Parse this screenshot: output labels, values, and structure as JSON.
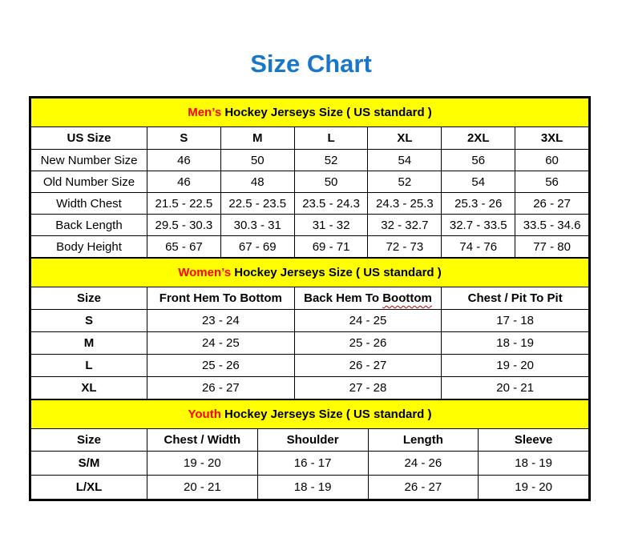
{
  "theme": {
    "title_blue": "#1976C8",
    "banner_yellow": "#FFFF00",
    "accent_red": "#FF0000",
    "squiggle_red": "#C00000",
    "border_black": "#000000",
    "text_black": "#000000"
  },
  "page": {
    "title": "Size Chart"
  },
  "mens": {
    "title_accent": "Men’s",
    "title_rest": " Hockey Jerseys Size ( US standard )",
    "header": [
      "US Size",
      "S",
      "M",
      "L",
      "XL",
      "2XL",
      "3XL"
    ],
    "rows": [
      [
        "New Number Size",
        "46",
        "50",
        "52",
        "54",
        "56",
        "60"
      ],
      [
        "Old Number Size",
        "46",
        "48",
        "50",
        "52",
        "54",
        "56"
      ],
      [
        "Width Chest",
        "21.5 - 22.5",
        "22.5 - 23.5",
        "23.5 - 24.3",
        "24.3 - 25.3",
        "25.3 - 26",
        "26 - 27"
      ],
      [
        "Back Length",
        "29.5 - 30.3",
        "30.3 - 31",
        "31 - 32",
        "32 - 32.7",
        "32.7 - 33.5",
        "33.5 - 34.6"
      ],
      [
        "Body Height",
        "65 - 67",
        "67 - 69",
        "69 - 71",
        "72 - 73",
        "74 - 76",
        "77 - 80"
      ]
    ]
  },
  "womens": {
    "title_accent": "Women’s",
    "title_rest": " Hockey Jerseys Size ( US standard )",
    "header": {
      "size": "Size",
      "front_hem": "Front Hem To Bottom",
      "back_hem_prefix": "Back Hem To ",
      "back_hem_word": "Boottom",
      "chest": "Chest / Pit To Pit"
    },
    "rows": [
      [
        "S",
        "23 - 24",
        "24 - 25",
        "17 - 18"
      ],
      [
        "M",
        "24 - 25",
        "25 - 26",
        "18 - 19"
      ],
      [
        "L",
        "25 - 26",
        "26 - 27",
        "19 - 20"
      ],
      [
        "XL",
        "26 - 27",
        "27 - 28",
        "20 - 21"
      ]
    ]
  },
  "youth": {
    "title_accent": "Youth",
    "title_rest": " Hockey Jerseys Size ( US standard )",
    "header": [
      "Size",
      "Chest / Width",
      "Shoulder",
      "Length",
      "Sleeve"
    ],
    "rows": [
      [
        "S/M",
        "19 - 20",
        "16 - 17",
        "24 - 26",
        "18 - 19"
      ],
      [
        "L/XL",
        "20 - 21",
        "18 - 19",
        "26 - 27",
        "19 - 20"
      ]
    ]
  }
}
